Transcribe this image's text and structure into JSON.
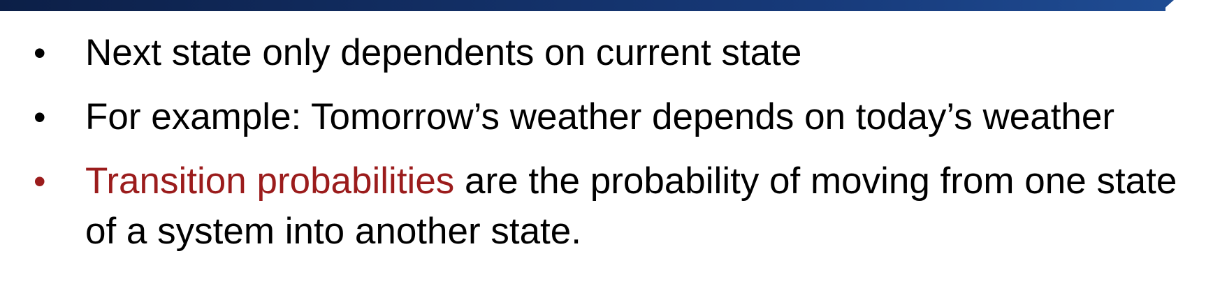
{
  "header": {
    "bar_color": "#173a7a"
  },
  "bullets": [
    {
      "text": "Next state only dependents on current state"
    },
    {
      "text": "For example: Tomorrow’s weather depends on today’s weather"
    },
    {
      "highlight": "Transition probabilities",
      "text": " are the probability of moving from one state of a system into another state.",
      "highlight_color": "#9b1c1c"
    }
  ],
  "bullet_glyph": "•"
}
